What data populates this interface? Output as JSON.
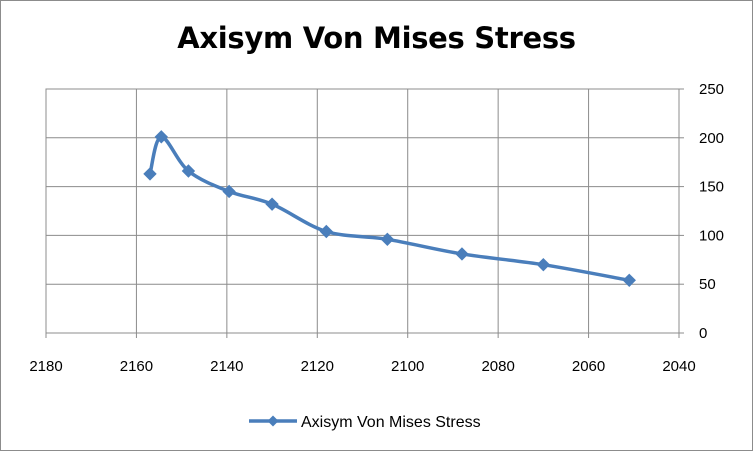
{
  "chart_data": {
    "type": "line",
    "title": "Axisym Von Mises Stress",
    "xlabel": "",
    "ylabel": "",
    "x_axis_reversed": true,
    "xlim": [
      2040,
      2180
    ],
    "ylim": [
      0,
      250
    ],
    "x_ticks": [
      2180,
      2160,
      2140,
      2120,
      2100,
      2080,
      2060,
      2040
    ],
    "y_ticks": [
      0,
      50,
      100,
      150,
      200,
      250
    ],
    "y_axis_position": "right",
    "grid": true,
    "legend_position": "bottom",
    "series": [
      {
        "name": "Axisym Von Mises Stress",
        "color": "#4a7ebb",
        "marker": "diamond",
        "x": [
          2157,
          2154.5,
          2148.5,
          2139.5,
          2130,
          2118,
          2104.5,
          2088,
          2070,
          2051
        ],
        "y": [
          163,
          201,
          166,
          145,
          132,
          104,
          96,
          81,
          70,
          54
        ]
      }
    ]
  }
}
